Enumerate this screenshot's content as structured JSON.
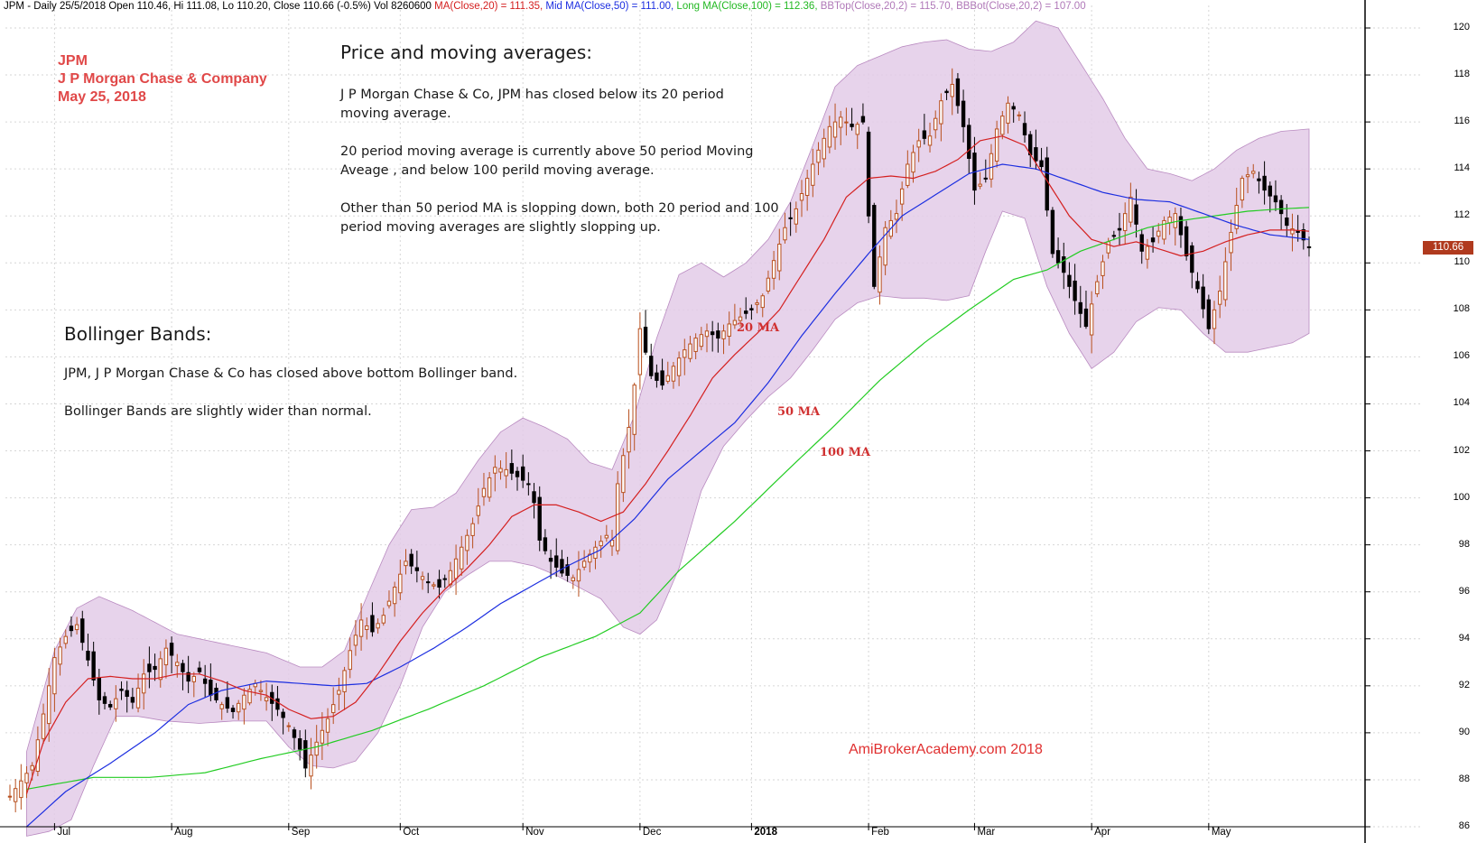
{
  "header": {
    "prefix": "JPM - Daily 25/5/2018 Open 110.46, Hi 111.08, Lo 110.20, Close 110.66 (-0.5%) Vol 8260600",
    "ma20": "MA(Close,20) = 111.35,",
    "ma50": "Mid MA(Close,50) = 111.00,",
    "ma100": "Long MA(Close,100) = 112.36,",
    "bbtop": "BBTop(Close,20,2) = 115.70,",
    "bbbot": "BBBot(Close,20,2) = 107.00"
  },
  "ticker": {
    "symbol": "JPM",
    "company": "J P Morgan Chase & Company",
    "date": "May 25, 2018"
  },
  "annotations": {
    "price_title": "Price and moving averages:",
    "price_p1_l1": "J P Morgan Chase & Co, JPM has closed below its 20 period",
    "price_p1_l2": "moving average.",
    "price_p2_l1": "20 period moving average is currently above 50 period Moving",
    "price_p2_l2": "Aveage , and below 100 perild moving average.",
    "price_p3_l1": "Other than 50 period MA is slopping down, both 20 period and 100",
    "price_p3_l2": "period moving averages are slightly slopping up.",
    "bb_title": "Bollinger Bands:",
    "bb_p1": "JPM, J P Morgan Chase & Co has closed above bottom Bollinger band.",
    "bb_p2": "Bollinger Bands are slightly wider than normal."
  },
  "ma_labels": {
    "ma20": "20 MA",
    "ma50": "50 MA",
    "ma100": "100 MA"
  },
  "watermark": "AmiBrokerAcademy.com  2018",
  "last_price": "110.66",
  "colors": {
    "ma20": "#d42020",
    "ma50": "#1c2ee0",
    "ma100": "#22cc22",
    "band_fill": "#e3cbe7",
    "band_stroke": "#b98ac0",
    "candle_up": "#b8501e",
    "candle_down": "#000000"
  },
  "chart_data": {
    "type": "candlestick",
    "title": "JPM - Daily",
    "y_ticks": [
      "86",
      "88",
      "90",
      "92",
      "94",
      "96",
      "98",
      "100",
      "102",
      "104",
      "106",
      "108",
      "110",
      "112",
      "114",
      "116",
      "118",
      "120"
    ],
    "ylim": [
      86,
      120.5
    ],
    "x_months": [
      {
        "label": "Jul",
        "bar": 8
      },
      {
        "label": "Aug",
        "bar": 29
      },
      {
        "label": "Sep",
        "bar": 50
      },
      {
        "label": "Oct",
        "bar": 70
      },
      {
        "label": "Nov",
        "bar": 92
      },
      {
        "label": "Dec",
        "bar": 113
      },
      {
        "label": "2018",
        "bar": 133,
        "bold": true
      },
      {
        "label": "Feb",
        "bar": 154
      },
      {
        "label": "Mar",
        "bar": 173
      },
      {
        "label": "Apr",
        "bar": 194
      },
      {
        "label": "May",
        "bar": 215
      }
    ],
    "bars_total": 234,
    "close_key": [
      [
        0,
        87.3
      ],
      [
        4,
        88.6
      ],
      [
        6,
        90.8
      ],
      [
        8,
        93.2
      ],
      [
        10,
        94.1
      ],
      [
        12,
        94.6
      ],
      [
        14,
        93.1
      ],
      [
        16,
        91.4
      ],
      [
        18,
        91.1
      ],
      [
        20,
        91.8
      ],
      [
        22,
        91.3
      ],
      [
        24,
        92.5
      ],
      [
        26,
        92.7
      ],
      [
        28,
        93.6
      ],
      [
        30,
        93.0
      ],
      [
        32,
        92.2
      ],
      [
        34,
        92.6
      ],
      [
        36,
        91.6
      ],
      [
        38,
        91.2
      ],
      [
        40,
        90.9
      ],
      [
        42,
        91.6
      ],
      [
        44,
        92.1
      ],
      [
        46,
        91.5
      ],
      [
        48,
        91.0
      ],
      [
        50,
        90.3
      ],
      [
        52,
        89.3
      ],
      [
        53,
        88.5
      ],
      [
        55,
        89.6
      ],
      [
        57,
        90.6
      ],
      [
        59,
        91.8
      ],
      [
        61,
        93.5
      ],
      [
        63,
        94.8
      ],
      [
        65,
        94.3
      ],
      [
        67,
        95.0
      ],
      [
        69,
        96.2
      ],
      [
        71,
        97.3
      ],
      [
        73,
        96.9
      ],
      [
        75,
        96.4
      ],
      [
        77,
        96.2
      ],
      [
        79,
        96.9
      ],
      [
        81,
        97.9
      ],
      [
        83,
        98.9
      ],
      [
        85,
        100.4
      ],
      [
        87,
        101.3
      ],
      [
        89,
        101.2
      ],
      [
        91,
        100.9
      ],
      [
        93,
        100.6
      ],
      [
        94,
        99.8
      ],
      [
        95,
        98.2
      ],
      [
        97,
        97.3
      ],
      [
        99,
        96.8
      ],
      [
        101,
        96.6
      ],
      [
        103,
        97.3
      ],
      [
        105,
        97.9
      ],
      [
        107,
        98.4
      ],
      [
        108,
        98.2
      ],
      [
        109,
        100.6
      ],
      [
        111,
        103.0
      ],
      [
        112,
        104.8
      ],
      [
        113,
        107.2
      ],
      [
        115,
        105.2
      ],
      [
        117,
        104.8
      ],
      [
        119,
        105.6
      ],
      [
        121,
        106.3
      ],
      [
        123,
        106.8
      ],
      [
        125,
        107.1
      ],
      [
        127,
        106.8
      ],
      [
        129,
        107.4
      ],
      [
        131,
        107.7
      ],
      [
        133,
        108.0
      ],
      [
        135,
        108.6
      ],
      [
        137,
        110.1
      ],
      [
        139,
        111.5
      ],
      [
        141,
        112.3
      ],
      [
        143,
        113.6
      ],
      [
        145,
        114.8
      ],
      [
        147,
        115.8
      ],
      [
        149,
        116.2
      ],
      [
        151,
        115.8
      ],
      [
        153,
        116.0
      ],
      [
        154,
        112.0
      ],
      [
        155,
        109.0
      ],
      [
        157,
        111.5
      ],
      [
        159,
        112.1
      ],
      [
        161,
        114.2
      ],
      [
        163,
        115.2
      ],
      [
        165,
        115.4
      ],
      [
        167,
        116.9
      ],
      [
        169,
        117.6
      ],
      [
        171,
        115.8
      ],
      [
        173,
        113.1
      ],
      [
        175,
        113.6
      ],
      [
        177,
        115.7
      ],
      [
        179,
        116.8
      ],
      [
        181,
        116.3
      ],
      [
        183,
        114.6
      ],
      [
        185,
        114.1
      ],
      [
        187,
        110.4
      ],
      [
        189,
        109.6
      ],
      [
        191,
        108.4
      ],
      [
        193,
        107.3
      ],
      [
        195,
        109.2
      ],
      [
        197,
        110.9
      ],
      [
        199,
        111.4
      ],
      [
        201,
        112.8
      ],
      [
        203,
        110.5
      ],
      [
        205,
        110.9
      ],
      [
        207,
        111.8
      ],
      [
        209,
        112.1
      ],
      [
        211,
        110.3
      ],
      [
        213,
        108.9
      ],
      [
        215,
        107.2
      ],
      [
        217,
        108.8
      ],
      [
        219,
        111.3
      ],
      [
        221,
        113.6
      ],
      [
        223,
        113.9
      ],
      [
        225,
        113.1
      ],
      [
        227,
        112.6
      ],
      [
        229,
        111.6
      ],
      [
        231,
        111.3
      ],
      [
        233,
        110.66
      ]
    ],
    "ma20_key": [
      [
        3,
        87.4
      ],
      [
        6,
        89.6
      ],
      [
        10,
        91.3
      ],
      [
        14,
        92.3
      ],
      [
        18,
        92.4
      ],
      [
        22,
        92.3
      ],
      [
        26,
        92.3
      ],
      [
        30,
        92.5
      ],
      [
        34,
        92.5
      ],
      [
        38,
        92.2
      ],
      [
        42,
        91.8
      ],
      [
        46,
        91.6
      ],
      [
        50,
        91.0
      ],
      [
        54,
        90.6
      ],
      [
        58,
        90.7
      ],
      [
        62,
        91.3
      ],
      [
        66,
        92.5
      ],
      [
        70,
        93.9
      ],
      [
        74,
        95.1
      ],
      [
        78,
        96.1
      ],
      [
        82,
        97.0
      ],
      [
        86,
        98.0
      ],
      [
        90,
        99.2
      ],
      [
        94,
        99.7
      ],
      [
        98,
        99.7
      ],
      [
        102,
        99.4
      ],
      [
        106,
        99.0
      ],
      [
        110,
        99.4
      ],
      [
        114,
        100.6
      ],
      [
        118,
        102.0
      ],
      [
        122,
        103.5
      ],
      [
        126,
        105.1
      ],
      [
        130,
        106.1
      ],
      [
        134,
        107.0
      ],
      [
        138,
        108.0
      ],
      [
        142,
        109.5
      ],
      [
        146,
        111.0
      ],
      [
        150,
        112.8
      ],
      [
        154,
        113.6
      ],
      [
        158,
        113.7
      ],
      [
        162,
        113.6
      ],
      [
        166,
        113.9
      ],
      [
        170,
        114.4
      ],
      [
        174,
        115.2
      ],
      [
        178,
        115.4
      ],
      [
        182,
        115.0
      ],
      [
        186,
        113.5
      ],
      [
        190,
        112.0
      ],
      [
        194,
        111.0
      ],
      [
        198,
        110.7
      ],
      [
        202,
        110.9
      ],
      [
        206,
        110.6
      ],
      [
        210,
        110.3
      ],
      [
        214,
        110.5
      ],
      [
        218,
        110.9
      ],
      [
        222,
        111.2
      ],
      [
        226,
        111.4
      ],
      [
        230,
        111.4
      ],
      [
        233,
        111.35
      ]
    ],
    "ma50_key": [
      [
        3,
        86.0
      ],
      [
        10,
        87.5
      ],
      [
        18,
        88.7
      ],
      [
        26,
        90.0
      ],
      [
        32,
        91.2
      ],
      [
        38,
        91.8
      ],
      [
        46,
        92.2
      ],
      [
        52,
        92.1
      ],
      [
        58,
        92.0
      ],
      [
        64,
        92.1
      ],
      [
        70,
        92.8
      ],
      [
        76,
        93.6
      ],
      [
        82,
        94.5
      ],
      [
        88,
        95.5
      ],
      [
        94,
        96.3
      ],
      [
        100,
        97.1
      ],
      [
        106,
        97.8
      ],
      [
        112,
        99.1
      ],
      [
        118,
        100.8
      ],
      [
        124,
        102.0
      ],
      [
        130,
        103.2
      ],
      [
        136,
        104.9
      ],
      [
        142,
        106.9
      ],
      [
        148,
        108.7
      ],
      [
        154,
        110.4
      ],
      [
        160,
        112.0
      ],
      [
        166,
        112.9
      ],
      [
        172,
        113.8
      ],
      [
        178,
        114.2
      ],
      [
        184,
        114.0
      ],
      [
        190,
        113.5
      ],
      [
        196,
        113.0
      ],
      [
        202,
        112.7
      ],
      [
        208,
        112.6
      ],
      [
        214,
        112.1
      ],
      [
        220,
        111.6
      ],
      [
        226,
        111.2
      ],
      [
        233,
        111.0
      ]
    ],
    "ma100_key": [
      [
        3,
        87.6
      ],
      [
        15,
        88.1
      ],
      [
        25,
        88.1
      ],
      [
        35,
        88.3
      ],
      [
        45,
        88.9
      ],
      [
        55,
        89.4
      ],
      [
        65,
        90.1
      ],
      [
        75,
        91.0
      ],
      [
        85,
        92.0
      ],
      [
        95,
        93.2
      ],
      [
        105,
        94.1
      ],
      [
        113,
        95.1
      ],
      [
        120,
        96.9
      ],
      [
        130,
        99.0
      ],
      [
        140,
        101.3
      ],
      [
        148,
        103.1
      ],
      [
        156,
        105.0
      ],
      [
        164,
        106.6
      ],
      [
        172,
        108.0
      ],
      [
        180,
        109.3
      ],
      [
        186,
        109.7
      ],
      [
        192,
        110.5
      ],
      [
        198,
        111.0
      ],
      [
        204,
        111.5
      ],
      [
        210,
        111.8
      ],
      [
        216,
        112.0
      ],
      [
        222,
        112.2
      ],
      [
        228,
        112.3
      ],
      [
        233,
        112.36
      ]
    ],
    "bbtop_key": [
      [
        3,
        89.2
      ],
      [
        8,
        93.5
      ],
      [
        12,
        95.3
      ],
      [
        16,
        95.8
      ],
      [
        22,
        95.2
      ],
      [
        30,
        94.2
      ],
      [
        38,
        93.8
      ],
      [
        46,
        93.4
      ],
      [
        52,
        92.8
      ],
      [
        56,
        92.8
      ],
      [
        60,
        93.5
      ],
      [
        64,
        95.8
      ],
      [
        68,
        98.0
      ],
      [
        72,
        99.5
      ],
      [
        76,
        99.6
      ],
      [
        80,
        100.2
      ],
      [
        84,
        101.6
      ],
      [
        88,
        102.8
      ],
      [
        92,
        103.4
      ],
      [
        96,
        103.0
      ],
      [
        100,
        102.5
      ],
      [
        104,
        101.5
      ],
      [
        108,
        101.2
      ],
      [
        112,
        103.5
      ],
      [
        116,
        106.8
      ],
      [
        120,
        109.5
      ],
      [
        124,
        110.0
      ],
      [
        128,
        109.4
      ],
      [
        132,
        110.0
      ],
      [
        136,
        111.0
      ],
      [
        140,
        112.6
      ],
      [
        144,
        115.0
      ],
      [
        148,
        117.5
      ],
      [
        152,
        118.4
      ],
      [
        156,
        118.8
      ],
      [
        160,
        119.2
      ],
      [
        164,
        119.4
      ],
      [
        168,
        119.5
      ],
      [
        172,
        119.1
      ],
      [
        176,
        119.0
      ],
      [
        180,
        119.4
      ],
      [
        184,
        120.3
      ],
      [
        188,
        120.0
      ],
      [
        192,
        118.5
      ],
      [
        196,
        117.0
      ],
      [
        200,
        115.3
      ],
      [
        204,
        114.0
      ],
      [
        208,
        113.8
      ],
      [
        212,
        113.5
      ],
      [
        216,
        114.0
      ],
      [
        220,
        114.8
      ],
      [
        224,
        115.3
      ],
      [
        228,
        115.6
      ],
      [
        233,
        115.7
      ]
    ],
    "bbbot_key": [
      [
        3,
        85.6
      ],
      [
        7,
        85.8
      ],
      [
        11,
        86.3
      ],
      [
        15,
        88.6
      ],
      [
        19,
        90.7
      ],
      [
        23,
        90.7
      ],
      [
        28,
        90.5
      ],
      [
        34,
        90.4
      ],
      [
        40,
        90.5
      ],
      [
        46,
        90.5
      ],
      [
        50,
        89.4
      ],
      [
        54,
        88.6
      ],
      [
        58,
        88.5
      ],
      [
        62,
        88.8
      ],
      [
        66,
        90.0
      ],
      [
        70,
        92.0
      ],
      [
        74,
        94.5
      ],
      [
        78,
        96.0
      ],
      [
        82,
        96.7
      ],
      [
        86,
        97.3
      ],
      [
        90,
        97.3
      ],
      [
        94,
        97.1
      ],
      [
        98,
        96.7
      ],
      [
        102,
        96.2
      ],
      [
        106,
        95.7
      ],
      [
        110,
        94.5
      ],
      [
        113,
        94.2
      ],
      [
        116,
        94.8
      ],
      [
        120,
        97.0
      ],
      [
        124,
        100.3
      ],
      [
        128,
        102.2
      ],
      [
        132,
        103.3
      ],
      [
        136,
        104.3
      ],
      [
        140,
        105.1
      ],
      [
        144,
        106.3
      ],
      [
        148,
        107.6
      ],
      [
        152,
        108.3
      ],
      [
        156,
        108.6
      ],
      [
        160,
        108.5
      ],
      [
        164,
        108.5
      ],
      [
        168,
        108.4
      ],
      [
        172,
        108.6
      ],
      [
        175,
        110.5
      ],
      [
        178,
        112.2
      ],
      [
        182,
        111.9
      ],
      [
        186,
        109.0
      ],
      [
        190,
        107.0
      ],
      [
        194,
        105.5
      ],
      [
        198,
        106.2
      ],
      [
        202,
        107.5
      ],
      [
        206,
        108.1
      ],
      [
        210,
        108.0
      ],
      [
        214,
        107.0
      ],
      [
        218,
        106.2
      ],
      [
        222,
        106.2
      ],
      [
        226,
        106.4
      ],
      [
        230,
        106.6
      ],
      [
        233,
        107.0
      ]
    ]
  }
}
